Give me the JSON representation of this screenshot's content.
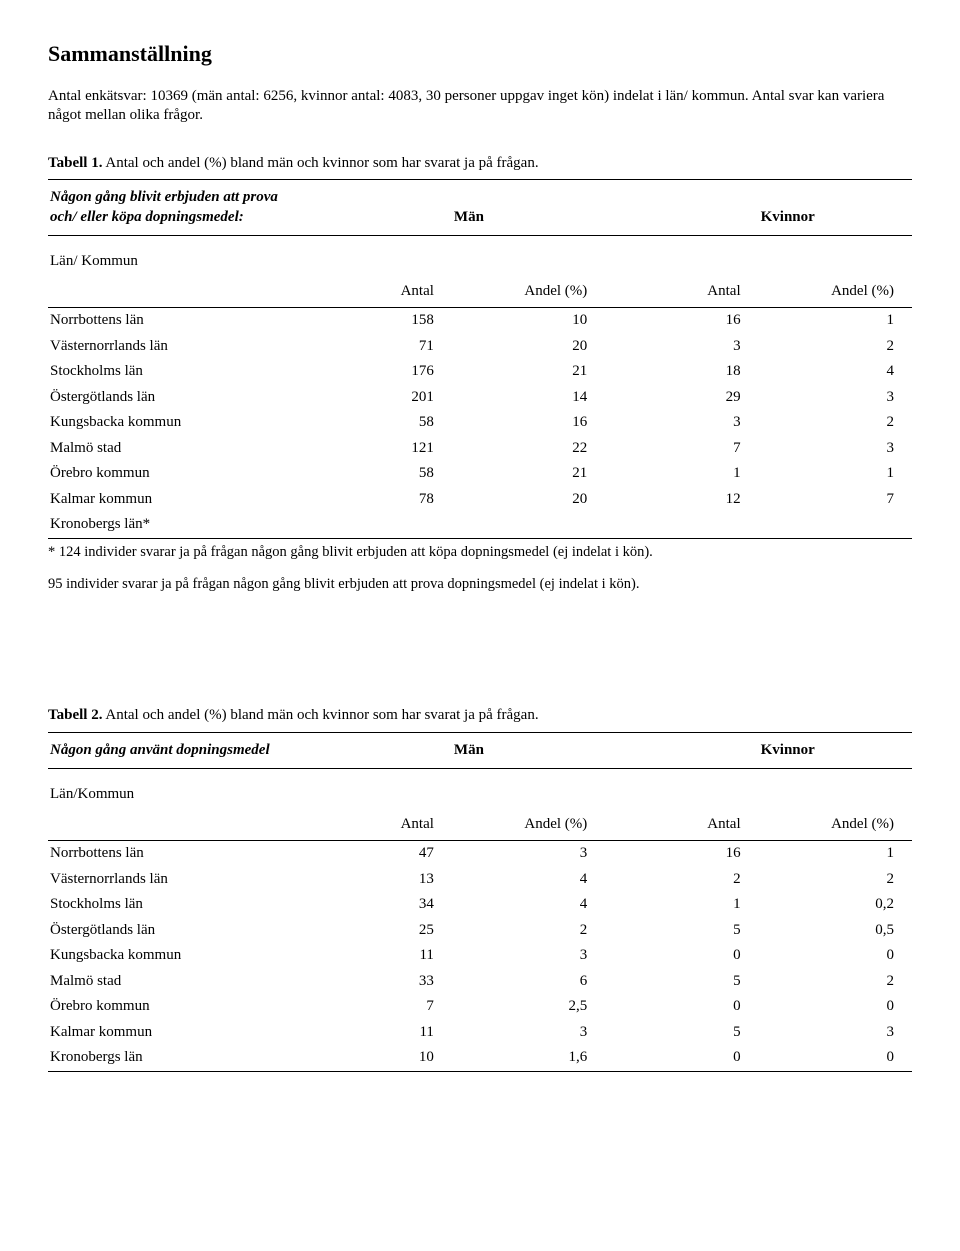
{
  "title": "Sammanställning",
  "intro": "Antal enkätsvar: 10369 (män antal: 6256, kvinnor antal: 4083, 30 personer uppgav inget kön) indelat i län/ kommun. Antal svar kan variera något mellan olika frågor.",
  "tabell1": {
    "label_prefix": "Tabell 1.",
    "label_rest": " Antal och andel (%) bland män och kvinnor som har svarat ja på frågan.",
    "question_line1": "Någon gång blivit erbjuden att prova",
    "question_line2": "och/ eller köpa dopningsmedel:",
    "group1": "Män",
    "group2": "Kvinnor",
    "subheader": "Län/ Kommun",
    "col1": "Antal",
    "col2": "Andel (%)",
    "col3": "Antal",
    "col4": "Andel (%)",
    "rows": [
      {
        "region": "Norrbottens län",
        "a": "158",
        "b": "10",
        "c": "16",
        "d": "1"
      },
      {
        "region": "Västernorrlands län",
        "a": "71",
        "b": "20",
        "c": "3",
        "d": "2"
      },
      {
        "region": "Stockholms län",
        "a": "176",
        "b": "21",
        "c": "18",
        "d": "4"
      },
      {
        "region": "Östergötlands län",
        "a": "201",
        "b": "14",
        "c": "29",
        "d": "3"
      },
      {
        "region": "Kungsbacka kommun",
        "a": "58",
        "b": "16",
        "c": "3",
        "d": "2"
      },
      {
        "region": "Malmö stad",
        "a": "121",
        "b": "22",
        "c": "7",
        "d": "3"
      },
      {
        "region": "Örebro kommun",
        "a": "58",
        "b": "21",
        "c": "1",
        "d": "1"
      },
      {
        "region": "Kalmar kommun",
        "a": "78",
        "b": "20",
        "c": "12",
        "d": "7"
      },
      {
        "region": "Kronobergs län*",
        "a": "",
        "b": "",
        "c": "",
        "d": ""
      }
    ],
    "footnote1": "* 124 individer svarar ja på frågan någon gång blivit erbjuden att köpa dopningsmedel (ej indelat i kön).",
    "footnote2": "95 individer svarar ja på frågan någon gång blivit erbjuden att prova dopningsmedel (ej indelat i kön)."
  },
  "tabell2": {
    "label_prefix": "Tabell 2.",
    "label_rest": " Antal och andel (%) bland män och kvinnor som har svarat ja på frågan.",
    "question": "Någon gång använt dopningsmedel",
    "group1": "Män",
    "group2": "Kvinnor",
    "subheader": "Län/Kommun",
    "col1": "Antal",
    "col2": "Andel (%)",
    "col3": "Antal",
    "col4": "Andel (%)",
    "rows": [
      {
        "region": "Norrbottens län",
        "a": "47",
        "b": "3",
        "c": "16",
        "d": "1"
      },
      {
        "region": "Västernorrlands län",
        "a": "13",
        "b": "4",
        "c": "2",
        "d": "2"
      },
      {
        "region": "Stockholms län",
        "a": "34",
        "b": "4",
        "c": "1",
        "d": "0,2"
      },
      {
        "region": "Östergötlands län",
        "a": "25",
        "b": "2",
        "c": "5",
        "d": "0,5"
      },
      {
        "region": "Kungsbacka kommun",
        "a": "11",
        "b": "3",
        "c": "0",
        "d": "0"
      },
      {
        "region": "Malmö stad",
        "a": "33",
        "b": "6",
        "c": "5",
        "d": "2"
      },
      {
        "region": "Örebro kommun",
        "a": "7",
        "b": "2,5",
        "c": "0",
        "d": "0"
      },
      {
        "region": "Kalmar kommun",
        "a": "11",
        "b": "3",
        "c": "5",
        "d": "3"
      },
      {
        "region": "Kronobergs län",
        "a": "10",
        "b": "1,6",
        "c": "0",
        "d": "0"
      }
    ]
  }
}
